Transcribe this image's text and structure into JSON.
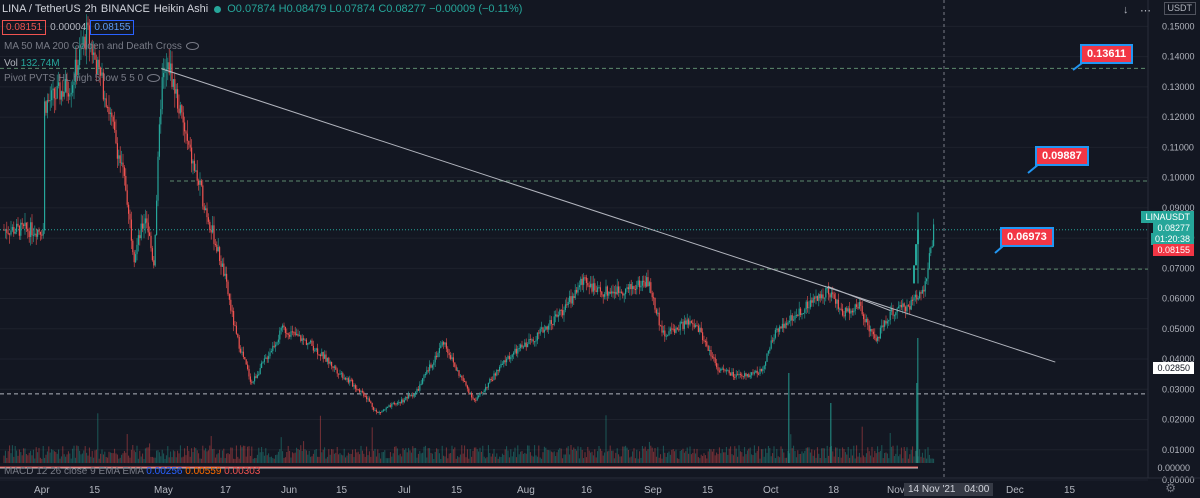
{
  "header": {
    "symbol": "LINA / TetherUS",
    "interval": "2h",
    "exchange": "BINANCE",
    "chart_style": "Heikin Ashi",
    "ohlc": "O0.07874  H0.08479  L0.07874  C0.08277  −0.00009 (−0.11%)",
    "sell_price": "0.08151",
    "spread": "0.00004",
    "buy_price": "0.08155"
  },
  "indicators": {
    "ma": "MA 50 MA 200 Golden and Death Cross",
    "volume_label": "Vol",
    "volume_value": "132.74M",
    "pivot": "Pivot PVTS HL high 5 low 5 5 0",
    "macd": "MACD 12 26 close 9 EMA EMA",
    "macd_v1": "0.00256",
    "macd_v2": "0.00559",
    "macd_v3": "0.00303"
  },
  "toolbar": {
    "down": "↓",
    "menu": "⋯",
    "currency": "USDT"
  },
  "callouts": [
    "0.13611",
    "0.09887",
    "0.06973"
  ],
  "price_labels": {
    "symbol": "LINAUSDT",
    "price": "0.08277",
    "countdown": "01:20:38",
    "bid": "0.08155",
    "alert": "0.02850",
    "macd_right": "0.00000"
  },
  "time_axis": {
    "labels": [
      "Apr",
      "15",
      "May",
      "17",
      "Jun",
      "15",
      "Jul",
      "15",
      "Aug",
      "16",
      "Sep",
      "15",
      "Oct",
      "18",
      "Nov",
      "Dec",
      "15"
    ],
    "cursor": "14 Nov '21",
    "cursor_time": "04:00"
  },
  "colors": {
    "up": "#26a69a",
    "down": "#ef5350",
    "bg": "#131722",
    "accent": "#2962ff"
  },
  "chart_data": {
    "type": "candlestick",
    "title": "LINA / TetherUS 2h BINANCE Heikin Ashi",
    "xlabel": "",
    "ylabel": "",
    "ylim": [
      0.0,
      0.155
    ],
    "y_ticks": [
      0.15,
      0.14,
      0.13,
      0.12,
      0.11,
      0.1,
      0.09,
      0.08,
      0.07,
      0.06,
      0.05,
      0.04,
      0.03,
      0.02,
      0.01,
      0.0
    ],
    "price_path": {
      "dates": [
        "Apr 1",
        "Apr 8",
        "Apr 12",
        "Apr 17",
        "Apr 22",
        "Apr 24",
        "Apr 27",
        "Apr 29",
        "May 1",
        "May 3",
        "May 8",
        "May 14",
        "May 17",
        "May 20",
        "May 24",
        "Jun 1",
        "Jun 8",
        "Jun 15",
        "Jun 22",
        "Jun 25",
        "Jul 1",
        "Jul 5",
        "Jul 12",
        "Jul 15",
        "Jul 20",
        "Jul 28",
        "Aug 5",
        "Aug 12",
        "Aug 17",
        "Aug 20",
        "Aug 28",
        "Sep 2",
        "Sep 6",
        "Sep 12",
        "Sep 15",
        "Sep 20",
        "Sep 25",
        "Oct 1",
        "Oct 5",
        "Oct 10",
        "Oct 18",
        "Oct 22",
        "Oct 26",
        "Oct 30",
        "Nov 3",
        "Nov 8",
        "Nov 12",
        "Nov 14"
      ],
      "values": [
        0.124,
        0.131,
        0.148,
        0.126,
        0.096,
        0.074,
        0.088,
        0.071,
        0.131,
        0.137,
        0.109,
        0.082,
        0.068,
        0.048,
        0.032,
        0.05,
        0.045,
        0.036,
        0.028,
        0.022,
        0.026,
        0.029,
        0.046,
        0.037,
        0.026,
        0.04,
        0.048,
        0.057,
        0.067,
        0.062,
        0.063,
        0.066,
        0.048,
        0.052,
        0.05,
        0.037,
        0.034,
        0.036,
        0.05,
        0.055,
        0.063,
        0.055,
        0.058,
        0.046,
        0.055,
        0.058,
        0.065,
        0.0828
      ]
    },
    "trendlines": [
      {
        "from": [
          "May 1",
          0.136
        ],
        "to": [
          "Dec 15",
          0.039
        ]
      },
      {
        "from": [
          "Oct 18",
          0.064
        ],
        "to": [
          "Nov 3",
          0.056
        ]
      }
    ],
    "levels": [
      {
        "value": 0.13611,
        "style": "dashed"
      },
      {
        "value": 0.09887,
        "style": "dashed"
      },
      {
        "value": 0.06973,
        "style": "dashed"
      },
      {
        "value": 0.0285,
        "style": "dashed"
      }
    ],
    "volume_max": "132.74M"
  }
}
